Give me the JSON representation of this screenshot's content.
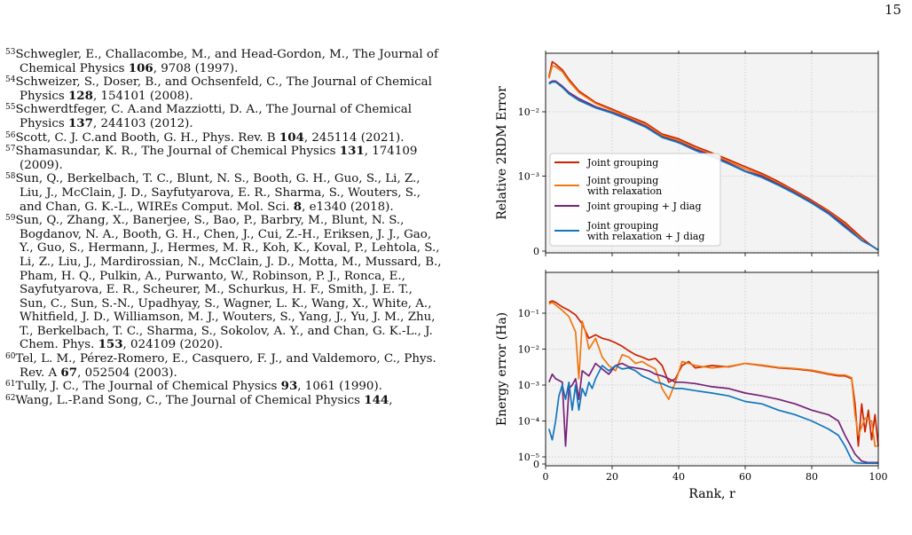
{
  "page_number": "15",
  "references": [
    {
      "num": "53",
      "parts": [
        {
          "t": "Schwegler, E., Challacombe, M., and Head-Gordon, M., The Journal of Chemical Physics "
        },
        {
          "t": "106",
          "b": true
        },
        {
          "t": ", 9708 (1997)."
        }
      ]
    },
    {
      "num": "54",
      "parts": [
        {
          "t": "Schweizer, S., Doser, B., and Ochsenfeld, C., The Journal of Chemical Physics "
        },
        {
          "t": "128",
          "b": true
        },
        {
          "t": ", 154101 (2008)."
        }
      ]
    },
    {
      "num": "55",
      "parts": [
        {
          "t": "Schwerdtfeger, C. A.and Mazziotti, D. A., The Journal of Chemical Physics "
        },
        {
          "t": "137",
          "b": true
        },
        {
          "t": ", 244103 (2012)."
        }
      ]
    },
    {
      "num": "56",
      "parts": [
        {
          "t": "Scott, C. J. C.and Booth, G. H., Phys. Rev. B "
        },
        {
          "t": "104",
          "b": true
        },
        {
          "t": ", 245114 (2021)."
        }
      ]
    },
    {
      "num": "57",
      "parts": [
        {
          "t": "Shamasundar, K. R., The Journal of Chemical Physics "
        },
        {
          "t": "131",
          "b": true
        },
        {
          "t": ", 174109 (2009)."
        }
      ]
    },
    {
      "num": "58",
      "parts": [
        {
          "t": "Sun, Q., Berkelbach, T. C., Blunt, N. S., Booth, G. H., Guo, S., Li, Z., Liu, J., McClain, J. D., Sayfutyarova, E. R., Sharma, S., Wouters, S., and Chan, G. K.-L., WIREs Comput. Mol. Sci. "
        },
        {
          "t": "8",
          "b": true
        },
        {
          "t": ", e1340 (2018)."
        }
      ]
    },
    {
      "num": "59",
      "parts": [
        {
          "t": "Sun, Q., Zhang, X., Banerjee, S., Bao, P., Barbry, M., Blunt, N. S., Bogdanov, N. A., Booth, G. H., Chen, J., Cui, Z.-H., Eriksen, J. J., Gao, Y., Guo, S., Hermann, J., Hermes, M. R., Koh, K., Koval, P., Lehtola, S., Li, Z., Liu, J., Mardirossian, N., McClain, J. D., Motta, M., Mussard, B., Pham, H. Q., Pulkin, A., Purwanto, W., Robinson, P. J., Ronca, E., Sayfutyarova, E. R., Scheurer, M., Schurkus, H. F., Smith, J. E. T., Sun, C., Sun, S.-N., Upadhyay, S., Wagner, L. K., Wang, X., White, A., Whitfield, J. D., Williamson, M. J., Wouters, S., Yang, J., Yu, J. M., Zhu, T., Berkelbach, T. C., Sharma, S., Sokolov, A. Y., and Chan, G. K.-L., J. Chem. Phys. "
        },
        {
          "t": "153",
          "b": true
        },
        {
          "t": ", 024109 (2020)."
        }
      ]
    },
    {
      "num": "60",
      "parts": [
        {
          "t": "Tel, L. M., Pérez-Romero, E., Casquero, F. J., and Valdemoro, C., Phys. Rev. A "
        },
        {
          "t": "67",
          "b": true
        },
        {
          "t": ", 052504 (2003)."
        }
      ]
    },
    {
      "num": "61",
      "parts": [
        {
          "t": "Tully, J. C., The Journal of Chemical Physics "
        },
        {
          "t": "93",
          "b": true
        },
        {
          "t": ", 1061 (1990)."
        }
      ]
    },
    {
      "num": "62",
      "parts": [
        {
          "t": "Wang, L.-P.and Song, C., The Journal of Chemical Physics "
        },
        {
          "t": "144",
          "b": true
        },
        {
          "t": ","
        }
      ]
    }
  ],
  "chart_data": [
    {
      "type": "line",
      "ylabel": "Relative 2RDM Error",
      "yscale": "symlog",
      "yticks": [
        "10⁻²",
        "10⁻³",
        "0"
      ],
      "xlim": [
        0,
        100
      ],
      "grid": true,
      "legend_position": "lower-left",
      "series": [
        {
          "name": "Joint grouping",
          "color": "#cc2200",
          "x": [
            1,
            2,
            3,
            5,
            7,
            10,
            15,
            20,
            25,
            30,
            35,
            40,
            45,
            50,
            55,
            60,
            65,
            70,
            75,
            80,
            85,
            90,
            95,
            98,
            100
          ],
          "y": [
            0.035,
            0.06,
            0.055,
            0.045,
            0.032,
            0.021,
            0.014,
            0.011,
            0.0085,
            0.0067,
            0.0045,
            0.0038,
            0.0029,
            0.0023,
            0.0018,
            0.0014,
            0.0011,
            0.00082,
            0.00059,
            0.00042,
            0.00029,
            0.00019,
            0.00011,
            5e-05,
            1e-05
          ]
        },
        {
          "name": "Joint grouping\nwith relaxation",
          "color": "#ee7711",
          "x": [
            1,
            2,
            3,
            5,
            7,
            10,
            15,
            20,
            25,
            30,
            35,
            40,
            45,
            50,
            55,
            60,
            65,
            70,
            75,
            80,
            85,
            90,
            95,
            98,
            100
          ],
          "y": [
            0.033,
            0.052,
            0.05,
            0.042,
            0.03,
            0.02,
            0.0135,
            0.0105,
            0.0082,
            0.0064,
            0.0043,
            0.0036,
            0.0027,
            0.0022,
            0.0017,
            0.0013,
            0.00105,
            0.00078,
            0.00057,
            0.0004,
            0.00028,
            0.00018,
            0.0001,
            5e-05,
            1e-05
          ]
        },
        {
          "name": "Joint grouping + J diag",
          "color": "#772277",
          "x": [
            1,
            2,
            3,
            5,
            7,
            10,
            15,
            20,
            25,
            30,
            35,
            40,
            45,
            50,
            55,
            60,
            65,
            70,
            75,
            80,
            85,
            90,
            95,
            98,
            100
          ],
          "y": [
            0.028,
            0.03,
            0.03,
            0.025,
            0.02,
            0.016,
            0.012,
            0.0098,
            0.0078,
            0.006,
            0.0041,
            0.0034,
            0.0026,
            0.0021,
            0.0016,
            0.0012,
            0.001,
            0.00075,
            0.00055,
            0.00039,
            0.00027,
            0.00017,
            0.0001,
            5e-05,
            1e-05
          ]
        },
        {
          "name": "Joint grouping\nwith relaxation + J diag",
          "color": "#1177bb",
          "x": [
            1,
            2,
            3,
            5,
            7,
            10,
            15,
            20,
            25,
            30,
            35,
            40,
            45,
            50,
            55,
            60,
            65,
            70,
            75,
            80,
            85,
            90,
            95,
            98,
            100
          ],
          "y": [
            0.027,
            0.029,
            0.029,
            0.024,
            0.019,
            0.015,
            0.0115,
            0.0095,
            0.0075,
            0.0058,
            0.004,
            0.0033,
            0.0025,
            0.002,
            0.00155,
            0.00118,
            0.00095,
            0.00072,
            0.00053,
            0.00038,
            0.00026,
            0.00016,
            0.0001,
            5e-05,
            1e-05
          ]
        }
      ]
    },
    {
      "type": "line",
      "ylabel": "Energy error (Ha)",
      "xlabel": "Rank, r",
      "yscale": "symlog",
      "yticks": [
        "10⁻¹",
        "10⁻²",
        "10⁻³",
        "10⁻⁴",
        "10⁻⁵",
        "0"
      ],
      "xticks": [
        "0",
        "20",
        "40",
        "60",
        "80",
        "100"
      ],
      "xlim": [
        0,
        100
      ],
      "grid": true,
      "series": [
        {
          "name": "Joint grouping",
          "color": "#cc2200",
          "x": [
            1,
            2,
            3,
            5,
            7,
            9,
            11,
            13,
            15,
            17,
            19,
            21,
            23,
            25,
            27,
            29,
            31,
            33,
            35,
            37,
            39,
            41,
            43,
            45,
            50,
            55,
            60,
            65,
            70,
            75,
            80,
            85,
            88,
            90,
            92,
            93,
            94,
            95,
            96,
            97,
            98,
            99,
            100
          ],
          "y": [
            0.2,
            0.22,
            0.2,
            0.15,
            0.12,
            0.09,
            0.05,
            0.02,
            0.025,
            0.02,
            0.018,
            0.015,
            0.012,
            0.009,
            0.007,
            0.006,
            0.005,
            0.0055,
            0.0035,
            0.0012,
            0.0015,
            0.0035,
            0.0045,
            0.003,
            0.0035,
            0.0032,
            0.004,
            0.0035,
            0.003,
            0.0028,
            0.0025,
            0.002,
            0.0018,
            0.0018,
            0.0015,
            0.0003,
            2e-05,
            0.0003,
            5e-05,
            0.0002,
            3e-05,
            0.00015,
            2e-05
          ]
        },
        {
          "name": "Joint grouping\nwith relaxation",
          "color": "#ee7711",
          "x": [
            1,
            2,
            3,
            5,
            7,
            9,
            10,
            11,
            12,
            13,
            15,
            17,
            19,
            21,
            23,
            25,
            27,
            29,
            31,
            33,
            35,
            37,
            39,
            41,
            43,
            45,
            50,
            55,
            60,
            65,
            70,
            75,
            80,
            85,
            88,
            90,
            92,
            93,
            94,
            96,
            98,
            99,
            100
          ],
          "y": [
            0.18,
            0.2,
            0.17,
            0.12,
            0.08,
            0.03,
            0.0015,
            0.06,
            0.03,
            0.01,
            0.02,
            0.006,
            0.0035,
            0.0025,
            0.007,
            0.006,
            0.004,
            0.0045,
            0.0035,
            0.0028,
            0.0008,
            0.0004,
            0.0012,
            0.0045,
            0.004,
            0.0035,
            0.003,
            0.0033,
            0.004,
            0.0036,
            0.0031,
            0.0029,
            0.0026,
            0.0021,
            0.0019,
            0.0019,
            0.0016,
            0.00015,
            4e-05,
            0.00012,
            0.0001,
            2e-05,
            2e-05
          ]
        },
        {
          "name": "Joint grouping + J diag",
          "color": "#772277",
          "x": [
            1,
            2,
            3,
            5,
            6,
            7,
            8,
            9,
            10,
            11,
            13,
            15,
            17,
            19,
            21,
            23,
            25,
            27,
            29,
            31,
            33,
            35,
            37,
            39,
            41,
            45,
            50,
            55,
            60,
            65,
            70,
            75,
            80,
            85,
            88,
            90,
            93,
            95,
            97,
            100
          ],
          "y": [
            0.0012,
            0.002,
            0.0015,
            0.0012,
            2e-05,
            0.0008,
            0.001,
            0.0015,
            0.0004,
            0.0025,
            0.0018,
            0.004,
            0.0028,
            0.002,
            0.0035,
            0.004,
            0.0032,
            0.003,
            0.0028,
            0.0025,
            0.002,
            0.0018,
            0.0015,
            0.0012,
            0.0012,
            0.0011,
            0.0009,
            0.0008,
            0.0006,
            0.0005,
            0.0004,
            0.0003,
            0.0002,
            0.00015,
            0.0001,
            4e-05,
            1.2e-05,
            4e-06,
            2e-06,
            2e-06
          ]
        },
        {
          "name": "Joint grouping\nwith relaxation + J diag",
          "color": "#1177bb",
          "x": [
            1,
            2,
            3,
            4,
            5,
            6,
            7,
            8,
            9,
            10,
            11,
            12,
            13,
            14,
            15,
            17,
            19,
            21,
            23,
            25,
            27,
            29,
            31,
            33,
            35,
            37,
            39,
            41,
            45,
            50,
            55,
            60,
            65,
            70,
            75,
            80,
            85,
            88,
            90,
            92,
            93,
            95,
            97,
            100
          ],
          "y": [
            6e-05,
            3e-05,
            0.0001,
            0.0005,
            0.001,
            0.0004,
            0.0012,
            0.0002,
            0.001,
            0.0002,
            0.0008,
            0.0005,
            0.0012,
            0.0008,
            0.0015,
            0.0035,
            0.0025,
            0.0035,
            0.0028,
            0.003,
            0.0025,
            0.0018,
            0.0015,
            0.0012,
            0.0011,
            0.0009,
            0.0008,
            0.0008,
            0.0007,
            0.0006,
            0.0005,
            0.00035,
            0.0003,
            0.0002,
            0.00015,
            0.0001,
            6e-05,
            4e-05,
            2e-05,
            6e-06,
            2e-06,
            1e-06,
            1e-06,
            1e-06
          ]
        }
      ]
    }
  ]
}
